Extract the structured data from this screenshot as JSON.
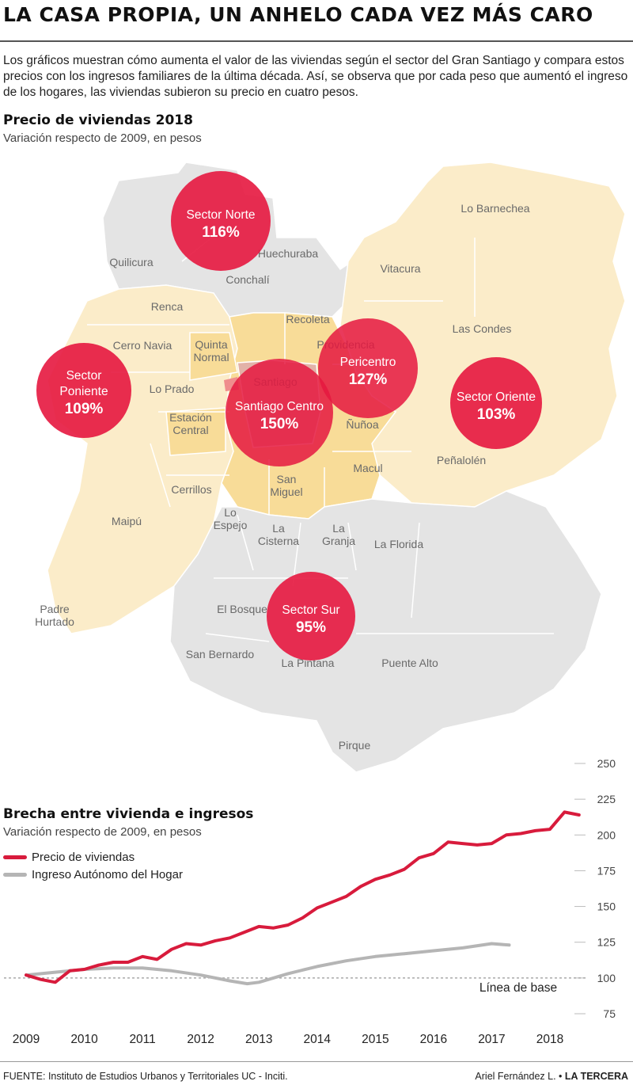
{
  "header": {
    "title": "LA CASA PROPIA, UN ANHELO CADA VEZ MÁS CARO",
    "intro": "Los gráficos muestran cómo aumenta el valor de las viviendas según el sector del Gran Santiago y compara estos precios con los ingresos familiares de la última década. Así, se observa que por cada peso que aumentó el ingreso de los hogares, las viviendas subieron su precio en cuatro pesos."
  },
  "map": {
    "title": "Precio de viviendas 2018",
    "subtitle": "Variación respecto de 2009, en pesos",
    "colors": {
      "sector_fill": "#fbecc9",
      "center_fill": "#f8dc98",
      "south_fill": "#e4e4e4",
      "north_fill": "#e4e4e4",
      "bubble": "#e5173f"
    },
    "comunas": [
      "Lo Barnechea",
      "Quilicura",
      "Huechuraba",
      "Conchalí",
      "Vitacura",
      "Renca",
      "Recoleta",
      "Las Condes",
      "Cerro Navia",
      "Quinta Normal",
      "Providencia",
      "Lo Prado",
      "Santiago",
      "Estación Central",
      "Ñuñoa",
      "Peñalolén",
      "Cerrillos",
      "Macul",
      "San Miguel",
      "Maipú",
      "Lo Espejo",
      "La Cisterna",
      "La Granja",
      "La Florida",
      "El Bosque",
      "Padre Hurtado",
      "San Bernardo",
      "La Pintana",
      "Puente Alto",
      "Pirque"
    ],
    "sectors": [
      {
        "name": "Sector Norte",
        "value": "116%"
      },
      {
        "name": "Sector Poniente",
        "value": "109%"
      },
      {
        "name": "Santiago Centro",
        "value": "150%"
      },
      {
        "name": "Pericentro",
        "value": "127%"
      },
      {
        "name": "Sector Oriente",
        "value": "103%"
      },
      {
        "name": "Sector Sur",
        "value": "95%"
      }
    ]
  },
  "chart_data": {
    "type": "line",
    "title": "Brecha entre vivienda e ingresos",
    "subtitle": "Variación respecto de 2009, en pesos",
    "ylim": [
      75,
      250
    ],
    "yticks": [
      75,
      100,
      125,
      150,
      175,
      200,
      225,
      250
    ],
    "xticks": [
      2009,
      2010,
      2011,
      2012,
      2013,
      2014,
      2015,
      2016,
      2017,
      2018
    ],
    "baseline": {
      "value": 100,
      "label": "Línea de base"
    },
    "series": [
      {
        "name": "Precio de viviendas",
        "color": "#d81b3c",
        "x": [
          2009.0,
          2009.25,
          2009.5,
          2009.75,
          2010.0,
          2010.25,
          2010.5,
          2010.75,
          2011.0,
          2011.25,
          2011.5,
          2011.75,
          2012.0,
          2012.25,
          2012.5,
          2012.75,
          2013.0,
          2013.25,
          2013.5,
          2013.75,
          2014.0,
          2014.25,
          2014.5,
          2014.75,
          2015.0,
          2015.25,
          2015.5,
          2015.75,
          2016.0,
          2016.25,
          2016.5,
          2016.75,
          2017.0,
          2017.25,
          2017.5,
          2017.75,
          2018.0,
          2018.25,
          2018.5
        ],
        "values": [
          102,
          99,
          97,
          105,
          106,
          109,
          111,
          111,
          115,
          113,
          120,
          124,
          123,
          126,
          128,
          132,
          136,
          135,
          137,
          142,
          149,
          153,
          157,
          164,
          169,
          172,
          176,
          184,
          187,
          195,
          194,
          193,
          194,
          200,
          201,
          203,
          204,
          216,
          214
        ]
      },
      {
        "name": "Ingreso Autónomo del Hogar",
        "color": "#b5b5b5",
        "x": [
          2009.0,
          2009.5,
          2010.0,
          2010.5,
          2011.0,
          2011.5,
          2012.0,
          2012.5,
          2012.8,
          2013.0,
          2013.5,
          2014.0,
          2014.5,
          2015.0,
          2015.5,
          2016.0,
          2016.5,
          2017.0,
          2017.3
        ],
        "values": [
          102,
          104,
          106,
          107,
          107,
          105,
          102,
          98,
          96,
          97,
          103,
          108,
          112,
          115,
          117,
          119,
          121,
          124,
          123
        ]
      }
    ]
  },
  "footer": {
    "source": "FUENTE: Instituto de Estudios Urbanos y Territoriales UC - Inciti.",
    "author": "Ariel Fernández L. •",
    "brand": "LA TERCERA"
  }
}
